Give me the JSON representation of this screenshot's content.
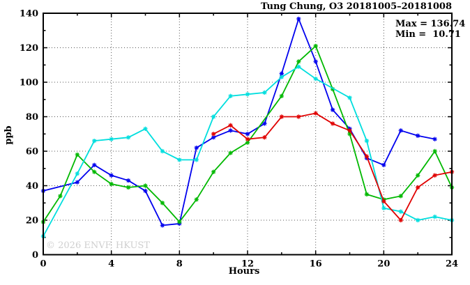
{
  "title": "Tung Chung, O3 20181005–20181008",
  "legend": {
    "max_line": "Max = 136.74",
    "min_line": "Min =  10.71"
  },
  "watermark": "© 2026 ENVF, HKUST",
  "chart_data": {
    "type": "line",
    "title": "Tung Chung, O3 20181005–20181008",
    "xlabel": "Hours",
    "ylabel": "ppb",
    "xlim": [
      0,
      24
    ],
    "ylim": [
      0,
      140
    ],
    "x_major_ticks": [
      0,
      4,
      8,
      12,
      16,
      20,
      24
    ],
    "x_minor_step": 2,
    "y_major_ticks": [
      0,
      20,
      40,
      60,
      80,
      100,
      120,
      140
    ],
    "y_minor_step": 10,
    "grid": true,
    "legend_position": "top-right-inside",
    "annotations": {
      "max": 136.74,
      "min": 10.71
    },
    "marker": "asterisk",
    "series": [
      {
        "name": "series-1-blue",
        "color": "#0000ee",
        "points": [
          [
            0,
            37
          ],
          [
            2,
            42
          ],
          [
            3,
            52
          ],
          [
            4,
            46
          ],
          [
            5,
            43
          ],
          [
            6,
            37
          ],
          [
            7,
            17
          ],
          [
            8,
            18
          ],
          [
            9,
            62
          ],
          [
            10,
            68
          ],
          [
            11,
            72
          ],
          [
            12,
            70
          ],
          [
            13,
            76
          ],
          [
            14,
            105
          ],
          [
            15,
            136.74
          ],
          [
            16,
            112
          ],
          [
            17,
            84
          ],
          [
            18,
            73
          ],
          [
            19,
            56
          ],
          [
            20,
            52
          ],
          [
            21,
            72
          ],
          [
            22,
            69
          ],
          [
            23,
            67
          ]
        ]
      },
      {
        "name": "series-2-green",
        "color": "#00b800",
        "points": [
          [
            0,
            19
          ],
          [
            1,
            34
          ],
          [
            2,
            58
          ],
          [
            3,
            48
          ],
          [
            4,
            41
          ],
          [
            5,
            39
          ],
          [
            6,
            40
          ],
          [
            7,
            30
          ],
          [
            8,
            19
          ],
          [
            9,
            32
          ],
          [
            10,
            48
          ],
          [
            11,
            59
          ],
          [
            12,
            65
          ],
          [
            14,
            92
          ],
          [
            15,
            112
          ],
          [
            16,
            121
          ],
          [
            17,
            96
          ],
          [
            18,
            70
          ],
          [
            19,
            35
          ],
          [
            20,
            32
          ],
          [
            21,
            34
          ],
          [
            22,
            46
          ],
          [
            23,
            60
          ],
          [
            24,
            39
          ]
        ]
      },
      {
        "name": "series-3-cyan",
        "color": "#00dede",
        "points": [
          [
            0,
            10.71
          ],
          [
            2,
            47
          ],
          [
            3,
            66
          ],
          [
            4,
            67
          ],
          [
            5,
            68
          ],
          [
            6,
            73
          ],
          [
            7,
            60
          ],
          [
            8,
            55
          ],
          [
            9,
            55
          ],
          [
            10,
            80
          ],
          [
            11,
            92
          ],
          [
            12,
            93
          ],
          [
            13,
            94
          ],
          [
            14,
            103
          ],
          [
            15,
            109
          ],
          [
            16,
            102
          ],
          [
            18,
            91
          ],
          [
            19,
            66
          ],
          [
            20,
            27
          ],
          [
            21,
            25
          ],
          [
            22,
            20
          ],
          [
            23,
            22
          ],
          [
            24,
            20
          ]
        ]
      },
      {
        "name": "series-4-red",
        "color": "#e00000",
        "points": [
          [
            10,
            70
          ],
          [
            11,
            75
          ],
          [
            12,
            67
          ],
          [
            13,
            68
          ],
          [
            14,
            80
          ],
          [
            15,
            80
          ],
          [
            16,
            82
          ],
          [
            17,
            76
          ],
          [
            18,
            72
          ],
          [
            19,
            57
          ],
          [
            20,
            31
          ],
          [
            21,
            20
          ],
          [
            22,
            39
          ],
          [
            23,
            46
          ],
          [
            24,
            48
          ]
        ]
      }
    ]
  }
}
